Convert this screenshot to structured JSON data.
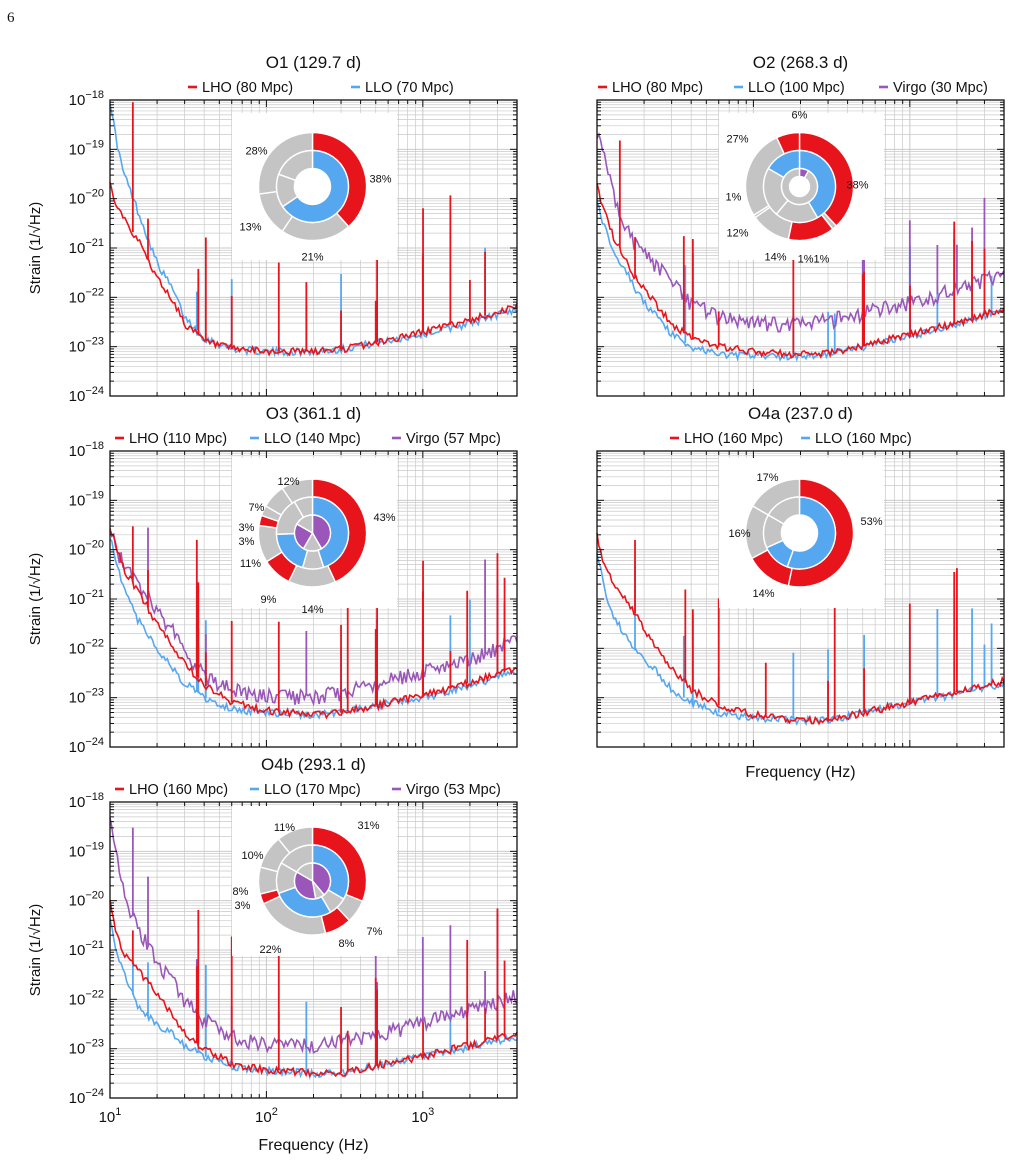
{
  "page_number": "6",
  "colors": {
    "LHO": "#e8141c",
    "LLO": "#55a8f0",
    "Virgo": "#9a56b8",
    "gray": "#c4c4c4",
    "grid": "#c9c9c9"
  },
  "chart_data": [
    {
      "id": "O1",
      "type": "line",
      "title": "O1 (129.7 d)",
      "xscale": "log",
      "yscale": "log",
      "xlim": [
        10,
        4000
      ],
      "ylim": [
        1e-24,
        1e-18
      ],
      "ylabel": "Strain (1/√Hz)",
      "xlabel": "",
      "series": [
        {
          "name": "LHO (80 Mpc)",
          "detector": "LHO",
          "x": [
            10,
            11,
            12,
            13,
            15,
            17,
            20,
            25,
            30,
            40,
            60,
            100,
            200,
            300,
            500,
            1000,
            2000,
            4000
          ],
          "y": [
            2e-20,
            8e-21,
            5e-21,
            3e-21,
            1.5e-21,
            7e-22,
            2.5e-22,
            9e-23,
            3e-23,
            1.3e-23,
            9e-24,
            8e-24,
            8e-24,
            9e-24,
            1.2e-23,
            2e-23,
            3.5e-23,
            6.5e-23
          ]
        },
        {
          "name": "LLO (70 Mpc)",
          "detector": "LLO",
          "x": [
            10,
            11,
            12,
            13,
            15,
            17,
            20,
            25,
            30,
            40,
            60,
            100,
            200,
            300,
            500,
            1000,
            2000,
            4000
          ],
          "y": [
            1e-18,
            1.5e-19,
            4e-20,
            2e-20,
            6e-21,
            2e-21,
            5e-22,
            1.5e-22,
            4e-23,
            1.5e-23,
            9e-24,
            8e-24,
            8e-24,
            9e-24,
            1.2e-23,
            1.8e-23,
            3e-23,
            6e-23
          ]
        }
      ],
      "donut": {
        "labels": [
          "38%",
          "21%",
          "13%",
          "28%"
        ]
      }
    },
    {
      "id": "O2",
      "type": "line",
      "title": "O2 (268.3 d)",
      "xscale": "log",
      "yscale": "log",
      "xlim": [
        10,
        4000
      ],
      "ylim": [
        1e-24,
        1e-18
      ],
      "ylabel": "",
      "xlabel": "",
      "series": [
        {
          "name": "LHO (80 Mpc)",
          "detector": "LHO",
          "x": [
            10,
            11,
            12,
            13,
            15,
            17,
            20,
            25,
            30,
            40,
            60,
            100,
            200,
            300,
            500,
            1000,
            2000,
            4000
          ],
          "y": [
            2e-20,
            6e-21,
            3e-21,
            1.5e-21,
            7e-22,
            3e-22,
            1.5e-22,
            6e-23,
            3e-23,
            1.5e-23,
            1e-23,
            8e-24,
            7e-24,
            7.5e-24,
            1e-23,
            1.8e-23,
            3e-23,
            6e-23
          ]
        },
        {
          "name": "LLO (100 Mpc)",
          "detector": "LLO",
          "x": [
            10,
            11,
            12,
            13,
            15,
            17,
            20,
            25,
            30,
            40,
            60,
            100,
            200,
            300,
            500,
            1000,
            2000,
            4000
          ],
          "y": [
            1e-20,
            3e-21,
            1.5e-21,
            8e-22,
            4e-22,
            1.8e-22,
            8e-23,
            3.5e-23,
            1.8e-23,
            1e-23,
            7e-24,
            6.5e-24,
            6.5e-24,
            7e-24,
            1e-23,
            1.6e-23,
            2.8e-23,
            6e-23
          ]
        },
        {
          "name": "Virgo (30 Mpc)",
          "detector": "Virgo",
          "x": [
            10,
            11,
            12,
            13,
            15,
            17,
            20,
            25,
            30,
            40,
            60,
            100,
            200,
            300,
            500,
            1000,
            2000,
            4000
          ],
          "y": [
            2e-19,
            1e-19,
            3e-20,
            1e-20,
            3e-21,
            1.5e-21,
            8e-22,
            4e-22,
            2e-22,
            8e-23,
            4e-23,
            3e-23,
            3e-23,
            3.5e-23,
            5e-23,
            8e-23,
            1.5e-22,
            3e-22
          ]
        }
      ],
      "donut": {
        "labels": [
          "38%",
          "1%1%",
          "14%",
          "12%",
          "1%",
          "27%",
          "6%"
        ]
      }
    },
    {
      "id": "O3",
      "type": "line",
      "title": "O3 (361.1 d)",
      "xscale": "log",
      "yscale": "log",
      "xlim": [
        10,
        4000
      ],
      "ylim": [
        1e-24,
        1e-18
      ],
      "ylabel": "Strain (1/√Hz)",
      "xlabel": "",
      "series": [
        {
          "name": "LHO (110 Mpc)",
          "detector": "LHO",
          "x": [
            10,
            11,
            12,
            13,
            15,
            17,
            20,
            25,
            30,
            40,
            60,
            100,
            200,
            300,
            500,
            1000,
            2000,
            4000
          ],
          "y": [
            3e-20,
            1e-20,
            5e-21,
            3e-21,
            1.5e-21,
            8e-22,
            3e-22,
            1.2e-22,
            5e-23,
            1.8e-23,
            8e-24,
            5.5e-24,
            4.5e-24,
            5e-24,
            7e-24,
            1.1e-23,
            2e-23,
            4e-23
          ]
        },
        {
          "name": "LLO (140 Mpc)",
          "detector": "LLO",
          "x": [
            10,
            11,
            12,
            13,
            15,
            17,
            20,
            25,
            30,
            40,
            60,
            100,
            200,
            300,
            500,
            1000,
            2000,
            4000
          ],
          "y": [
            2e-20,
            5e-21,
            2e-21,
            1e-21,
            4e-22,
            2e-22,
            1e-22,
            4e-23,
            2e-23,
            1e-23,
            6e-24,
            5e-24,
            4.5e-24,
            5e-24,
            7e-24,
            1e-23,
            1.8e-23,
            3.5e-23
          ]
        },
        {
          "name": "Virgo (57 Mpc)",
          "detector": "Virgo",
          "x": [
            10,
            11,
            12,
            13,
            15,
            17,
            20,
            25,
            30,
            40,
            60,
            100,
            200,
            300,
            500,
            1000,
            2000,
            4000
          ],
          "y": [
            3e-20,
            1e-20,
            6e-21,
            4e-21,
            2e-21,
            1.2e-21,
            6e-22,
            2.5e-22,
            1e-22,
            3e-23,
            1.5e-23,
            1.1e-23,
            1.1e-23,
            1.3e-23,
            2e-23,
            3.5e-23,
            6e-23,
            1.5e-22
          ]
        }
      ],
      "donut": {
        "labels": [
          "43%",
          "14%",
          "9%",
          "11%",
          "3%",
          "3%",
          "7%",
          "12%"
        ]
      }
    },
    {
      "id": "O4a",
      "type": "line",
      "title": "O4a (237.0 d)",
      "xscale": "log",
      "yscale": "log",
      "xlim": [
        10,
        4000
      ],
      "ylim": [
        1e-24,
        1e-18
      ],
      "ylabel": "",
      "xlabel": "Frequency (Hz)",
      "series": [
        {
          "name": "LHO (160 Mpc)",
          "detector": "LHO",
          "x": [
            10,
            11,
            12,
            13,
            15,
            17,
            20,
            25,
            30,
            40,
            60,
            100,
            200,
            300,
            500,
            1000,
            2000,
            4000
          ],
          "y": [
            2e-20,
            5e-21,
            3e-21,
            2e-21,
            1e-21,
            6e-22,
            2.5e-22,
            9e-23,
            4e-23,
            1.5e-23,
            7e-24,
            4.5e-24,
            3.5e-24,
            3.5e-24,
            5e-24,
            8e-24,
            1.3e-23,
            2.2e-23
          ]
        },
        {
          "name": "LLO (160 Mpc)",
          "detector": "LLO",
          "x": [
            10,
            11,
            12,
            13,
            15,
            17,
            20,
            25,
            30,
            40,
            60,
            100,
            200,
            300,
            500,
            1000,
            2000,
            4000
          ],
          "y": [
            1e-20,
            2e-21,
            8e-22,
            4e-22,
            2e-22,
            1e-22,
            6e-23,
            3e-23,
            1.5e-23,
            8e-24,
            5e-24,
            4e-24,
            3.5e-24,
            3.5e-24,
            5e-24,
            8e-24,
            1.2e-23,
            2e-23
          ]
        }
      ],
      "donut": {
        "labels": [
          "53%",
          "14%",
          "16%",
          "17%"
        ]
      }
    },
    {
      "id": "O4b",
      "type": "line",
      "title": "O4b (293.1 d)",
      "xscale": "log",
      "yscale": "log",
      "xlim": [
        10,
        4000
      ],
      "ylim": [
        1e-24,
        1e-18
      ],
      "ylabel": "Strain (1/√Hz)",
      "xlabel": "Frequency (Hz)",
      "series": [
        {
          "name": "LHO (160 Mpc)",
          "detector": "LHO",
          "x": [
            10,
            11,
            12,
            13,
            15,
            17,
            20,
            25,
            30,
            40,
            60,
            100,
            200,
            300,
            500,
            1000,
            2000,
            4000
          ],
          "y": [
            1e-20,
            2e-21,
            1e-21,
            7e-22,
            4e-22,
            2.5e-22,
            1.2e-22,
            5e-23,
            2e-23,
            1e-23,
            5e-24,
            3.8e-24,
            3.2e-24,
            3.2e-24,
            4.5e-24,
            7e-24,
            1.2e-23,
            2e-23
          ]
        },
        {
          "name": "LLO (170 Mpc)",
          "detector": "LLO",
          "x": [
            10,
            11,
            12,
            13,
            15,
            17,
            20,
            25,
            30,
            40,
            60,
            100,
            200,
            300,
            500,
            1000,
            2000,
            4000
          ],
          "y": [
            5e-21,
            1e-21,
            4e-22,
            2e-22,
            8e-23,
            5e-23,
            3e-23,
            2e-23,
            1.2e-23,
            7e-24,
            4.5e-24,
            3.6e-24,
            3.2e-24,
            3.2e-24,
            4.5e-24,
            7e-24,
            1.1e-23,
            1.8e-23
          ]
        },
        {
          "name": "Virgo (53 Mpc)",
          "detector": "Virgo",
          "x": [
            10,
            11,
            12,
            13,
            15,
            17,
            20,
            25,
            30,
            40,
            60,
            100,
            200,
            300,
            500,
            1000,
            2000,
            4000
          ],
          "y": [
            5e-19,
            1e-19,
            2e-20,
            8e-21,
            3e-21,
            1.5e-21,
            6e-22,
            2.5e-22,
            1e-22,
            4e-23,
            1.8e-23,
            1.2e-23,
            1.2e-23,
            1.4e-23,
            2e-23,
            3.5e-23,
            6e-23,
            1.2e-22
          ]
        }
      ],
      "donut": {
        "labels": [
          "31%",
          "7%",
          "8%",
          "22%",
          "3%",
          "8%",
          "10%",
          "11%"
        ]
      }
    }
  ]
}
